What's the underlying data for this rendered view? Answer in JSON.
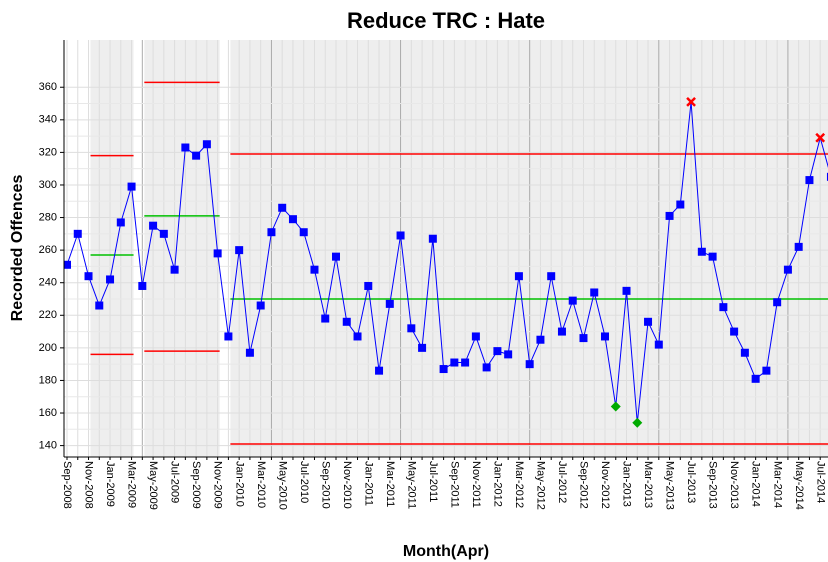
{
  "chart_data": {
    "type": "control",
    "title": "Reduce TRC : Hate",
    "x_label": "Month(Apr)",
    "y_label": "Recorded Offences",
    "categories": [
      "Sep-2008",
      null,
      "Nov-2008",
      null,
      "Jan-2009",
      null,
      "Mar-2009",
      null,
      "May-2009",
      null,
      "Jul-2009",
      null,
      "Sep-2009",
      null,
      "Nov-2009",
      null,
      "Jan-2010",
      null,
      "Mar-2010",
      null,
      "May-2010",
      null,
      "Jul-2010",
      null,
      "Sep-2010",
      null,
      "Nov-2010",
      null,
      "Jan-2011",
      null,
      "Mar-2011",
      null,
      "May-2011",
      null,
      "Jul-2011",
      null,
      "Sep-2011",
      null,
      "Nov-2011",
      null,
      "Jan-2012",
      null,
      "Mar-2012",
      null,
      "May-2012",
      null,
      "Jul-2012",
      null,
      "Sep-2012",
      null,
      "Nov-2012",
      null,
      "Jan-2013",
      null,
      "Mar-2013",
      null,
      "May-2013",
      null,
      "Jul-2013",
      null,
      "Sep-2013",
      null,
      "Nov-2013",
      null,
      "Jan-2014",
      null,
      "Mar-2014",
      null,
      "May-2014",
      null,
      "Jul-2014",
      null
    ],
    "values": [
      251,
      270,
      244,
      226,
      242,
      277,
      299,
      238,
      275,
      270,
      248,
      323,
      318,
      325,
      258,
      207,
      260,
      197,
      226,
      271,
      286,
      279,
      271,
      248,
      218,
      256,
      216,
      207,
      238,
      186,
      227,
      269,
      212,
      200,
      267,
      187,
      191,
      191,
      207,
      188,
      198,
      196,
      244,
      190,
      205,
      244,
      210,
      229,
      206,
      234,
      207,
      164,
      235,
      154,
      216,
      202,
      281,
      288,
      351,
      259,
      256,
      225,
      210,
      197,
      181,
      186,
      228,
      248,
      262,
      303,
      329,
      305
    ],
    "color": "#0000ff",
    "high_signal_points": [
      58,
      70
    ],
    "high_signal_color": "#ff0000",
    "low_signal_points": [
      51,
      53
    ],
    "low_signal_color": "#00aa00",
    "limits": [
      {
        "from": 2,
        "to": 6,
        "mean": 257,
        "ucl": 318,
        "lcl": 196
      },
      {
        "from": 7,
        "to": 14,
        "mean": 281,
        "ucl": 363,
        "lcl": 198
      },
      {
        "from": 15,
        "to": 71,
        "mean": 230,
        "ucl": 319,
        "lcl": 141
      }
    ],
    "mean_color": "#00c000",
    "limit_color": "#ff0000",
    "ylim": [
      133,
      389
    ],
    "yticks": [
      140,
      160,
      180,
      200,
      220,
      240,
      260,
      280,
      300,
      320,
      340,
      360
    ],
    "grid": true
  }
}
